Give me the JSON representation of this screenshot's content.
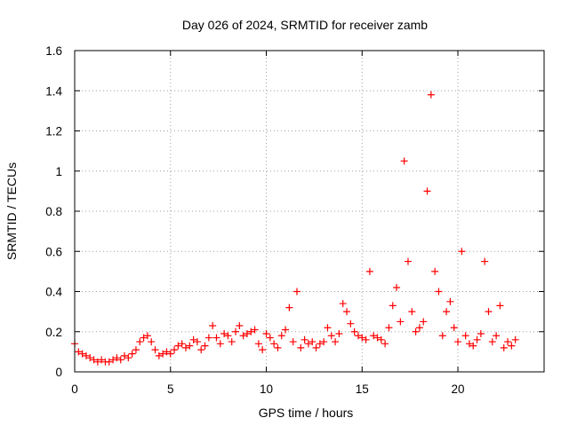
{
  "chart_data": {
    "type": "scatter",
    "title": "Day 026 of 2024, SRMTID for receiver zamb",
    "xlabel": "GPS time / hours",
    "ylabel": "SRMTID / TECUs",
    "xlim": [
      0,
      24.5
    ],
    "ylim": [
      0,
      1.6
    ],
    "xticks": [
      "0",
      "5",
      "10",
      "15",
      "20"
    ],
    "yticks": [
      "0",
      "0.2",
      "0.4",
      "0.6",
      "0.8",
      "1",
      "1.2",
      "1.4",
      "1.6"
    ],
    "grid": true,
    "marker": "+",
    "color": "#ff0000",
    "series": [
      {
        "name": "SRMTID",
        "x": [
          0.0,
          0.2,
          0.4,
          0.6,
          0.8,
          1.0,
          1.2,
          1.4,
          1.6,
          1.8,
          2.0,
          2.2,
          2.4,
          2.6,
          2.8,
          3.0,
          3.2,
          3.4,
          3.6,
          3.8,
          4.0,
          4.2,
          4.4,
          4.6,
          4.8,
          5.0,
          5.2,
          5.4,
          5.6,
          5.8,
          6.0,
          6.2,
          6.4,
          6.6,
          6.8,
          7.0,
          7.2,
          7.4,
          7.6,
          7.8,
          8.0,
          8.2,
          8.4,
          8.6,
          8.8,
          9.0,
          9.2,
          9.4,
          9.6,
          9.8,
          10.0,
          10.2,
          10.4,
          10.6,
          10.8,
          11.0,
          11.2,
          11.4,
          11.6,
          11.8,
          12.0,
          12.2,
          12.4,
          12.6,
          12.8,
          13.0,
          13.2,
          13.4,
          13.6,
          13.8,
          14.0,
          14.2,
          14.4,
          14.6,
          14.8,
          15.0,
          15.2,
          15.4,
          15.6,
          15.8,
          16.0,
          16.2,
          16.4,
          16.6,
          16.8,
          17.0,
          17.2,
          17.4,
          17.6,
          17.8,
          18.0,
          18.2,
          18.4,
          18.6,
          18.8,
          19.0,
          19.2,
          19.4,
          19.6,
          19.8,
          20.0,
          20.2,
          20.4,
          20.6,
          20.8,
          21.0,
          21.2,
          21.4,
          21.6,
          21.8,
          22.0,
          22.2,
          22.4,
          22.6,
          22.8,
          23.0
        ],
        "y": [
          0.14,
          0.1,
          0.09,
          0.08,
          0.07,
          0.06,
          0.05,
          0.06,
          0.05,
          0.05,
          0.06,
          0.07,
          0.06,
          0.08,
          0.07,
          0.09,
          0.11,
          0.15,
          0.17,
          0.18,
          0.15,
          0.11,
          0.08,
          0.09,
          0.1,
          0.09,
          0.11,
          0.13,
          0.14,
          0.12,
          0.13,
          0.16,
          0.15,
          0.11,
          0.13,
          0.17,
          0.23,
          0.17,
          0.14,
          0.19,
          0.18,
          0.15,
          0.2,
          0.23,
          0.18,
          0.19,
          0.2,
          0.21,
          0.14,
          0.11,
          0.19,
          0.17,
          0.14,
          0.12,
          0.18,
          0.21,
          0.32,
          0.15,
          0.4,
          0.12,
          0.16,
          0.14,
          0.15,
          0.12,
          0.14,
          0.15,
          0.22,
          0.18,
          0.15,
          0.19,
          0.34,
          0.3,
          0.24,
          0.2,
          0.18,
          0.17,
          0.16,
          0.5,
          0.18,
          0.17,
          0.16,
          0.14,
          0.22,
          0.33,
          0.42,
          0.25,
          1.05,
          0.55,
          0.3,
          0.2,
          0.22,
          0.25,
          0.9,
          1.38,
          0.5,
          0.4,
          0.18,
          0.3,
          0.35,
          0.22,
          0.15,
          0.6,
          0.18,
          0.14,
          0.13,
          0.16,
          0.19,
          0.55,
          0.3,
          0.15,
          0.18,
          0.33,
          0.12,
          0.15,
          0.13,
          0.16
        ]
      }
    ]
  }
}
